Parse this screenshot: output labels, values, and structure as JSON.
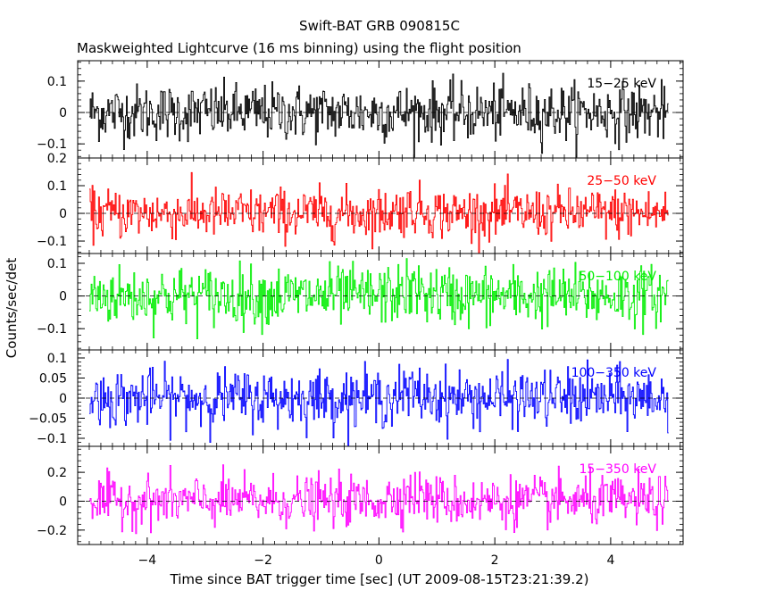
{
  "title": "Swift-BAT GRB 090815C",
  "subtitle": "Maskweighted Lightcurve (16 ms binning) using the flight position",
  "xlabel": "Time since BAT trigger time [sec] (UT 2009-08-15T23:21:39.2)",
  "ylabel": "Counts/sec/det",
  "chart_data": {
    "type": "line",
    "title": "Swift-BAT GRB 090815C",
    "subtitle": "Maskweighted Lightcurve (16 ms binning) using the flight position",
    "xlabel": "Time since BAT trigger time [sec] (UT 2009-08-15T23:21:39.2)",
    "ylabel": "Counts/sec/det",
    "xlim": [
      -5.2,
      5.25
    ],
    "x_ticks": [
      -4,
      -2,
      0,
      2,
      4
    ],
    "x_tick_labels": [
      "−4",
      "−2",
      "0",
      "2",
      "4"
    ],
    "t_start": -5.0,
    "t_end": 5.0,
    "bin_sec": 0.016,
    "grid": false,
    "zero_line": "dashed",
    "panels": [
      {
        "name": "15−25 keV",
        "color": "#000000",
        "ylim": [
          -0.145,
          0.165
        ],
        "noise": 0.045,
        "burst": 0.0,
        "y_ticks": [
          -0.1,
          0,
          0.1
        ],
        "y_tick_labels": [
          "−0.1",
          "0",
          "0.1"
        ]
      },
      {
        "name": "25−50 keV",
        "color": "#ff0000",
        "ylim": [
          -0.145,
          0.2
        ],
        "noise": 0.045,
        "burst": 0.015,
        "y_ticks": [
          -0.1,
          0,
          0.1,
          0.2
        ],
        "y_tick_labels": [
          "−0.1",
          "0",
          "0.1",
          "0.2"
        ]
      },
      {
        "name": "50−100 keV",
        "color": "#00ee00",
        "ylim": [
          -0.165,
          0.13
        ],
        "noise": 0.045,
        "burst": 0.015,
        "y_ticks": [
          -0.1,
          0,
          0.1
        ],
        "y_tick_labels": [
          "−0.1",
          "0",
          "0.1"
        ]
      },
      {
        "name": "100−350 keV",
        "color": "#0000ff",
        "ylim": [
          -0.12,
          0.12
        ],
        "noise": 0.035,
        "burst": 0.01,
        "y_ticks": [
          -0.1,
          -0.05,
          0,
          0.05,
          0.1
        ],
        "y_tick_labels": [
          "−0.1",
          "−0.05",
          "0",
          "0.05",
          "0.1"
        ]
      },
      {
        "name": "15−350 keV",
        "color": "#ff00ff",
        "ylim": [
          -0.3,
          0.38
        ],
        "noise": 0.085,
        "burst": 0.05,
        "y_ticks": [
          -0.2,
          0,
          0.2
        ],
        "y_tick_labels": [
          "−0.2",
          "0",
          "0.2"
        ]
      }
    ]
  }
}
